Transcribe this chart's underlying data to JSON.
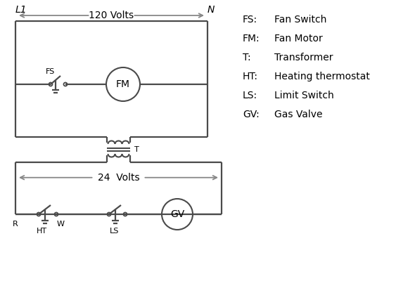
{
  "bg_color": "#ffffff",
  "line_color": "#4a4a4a",
  "arrow_color": "#888888",
  "text_color": "#000000",
  "legend": [
    [
      "FS:",
      "Fan Switch"
    ],
    [
      "FM:",
      "Fan Motor"
    ],
    [
      "T:",
      "Transformer"
    ],
    [
      "HT:",
      "Heating thermostat"
    ],
    [
      "LS:",
      "Limit Switch"
    ],
    [
      "GV:",
      "Gas Valve"
    ]
  ],
  "L1_label": "L1",
  "N_label": "N",
  "volts_120": "120 Volts",
  "volts_24": "24  Volts",
  "T_label": "T",
  "R_label": "R",
  "W_label": "W",
  "HT_label": "HT",
  "LS_label": "LS",
  "FS_label": "FS",
  "FM_label": "FM",
  "GV_label": "GV"
}
